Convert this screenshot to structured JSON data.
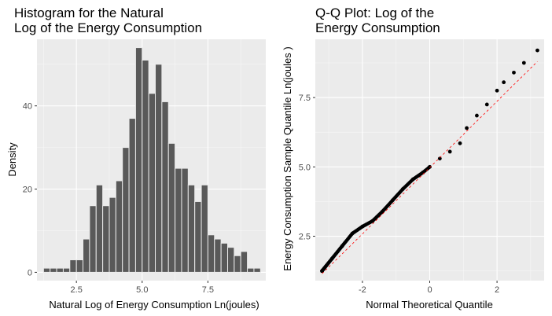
{
  "chart_data": [
    {
      "type": "bar",
      "title": "Histogram for the Natural\nLog of the Energy Consumption",
      "xlabel": "Natural Log of Energy Consumption Ln(joules)",
      "ylabel": "Density",
      "xlim": [
        1.0,
        9.7
      ],
      "ylim": [
        -2,
        56
      ],
      "xticks": [
        2.5,
        5.0,
        7.5
      ],
      "xtick_labels": [
        "2.5",
        "5.0",
        "7.5"
      ],
      "yticks": [
        0,
        20,
        40
      ],
      "ytick_labels": [
        "0",
        "20",
        "40"
      ],
      "bin_width": 0.25,
      "bin_starts": [
        1.25,
        1.5,
        1.75,
        2.0,
        2.25,
        2.5,
        2.75,
        3.0,
        3.25,
        3.5,
        3.75,
        4.0,
        4.25,
        4.5,
        4.75,
        5.0,
        5.25,
        5.5,
        5.75,
        6.0,
        6.25,
        6.5,
        6.75,
        7.0,
        7.25,
        7.5,
        7.75,
        8.0,
        8.25,
        8.5,
        8.75,
        9.0,
        9.25
      ],
      "values": [
        1,
        1,
        1,
        1,
        3,
        3,
        8,
        16,
        21,
        16,
        18,
        22,
        30,
        37,
        54,
        51,
        43,
        50,
        41,
        31,
        25,
        25,
        21,
        17,
        21,
        9,
        8,
        7,
        6,
        4,
        5,
        1,
        1
      ],
      "grid": true
    },
    {
      "type": "scatter",
      "title": "Q-Q Plot: Log of the\nEnergy Consumption",
      "xlabel": "Normal Theoretical Quantile",
      "ylabel": "Energy Consumption Sample Quantile Ln(joules )",
      "xlim": [
        -3.4,
        3.4
      ],
      "ylim": [
        0.9,
        9.6
      ],
      "xticks": [
        -2,
        0,
        2
      ],
      "xtick_labels": [
        "-2",
        "0",
        "2"
      ],
      "yticks": [
        2.5,
        5.0,
        7.5
      ],
      "ytick_labels": [
        "2.5",
        "5.0",
        "7.5"
      ],
      "reference_line": {
        "x": [
          -3.2,
          3.2
        ],
        "y": [
          1.15,
          8.8
        ],
        "color": "#ff0000",
        "style": "dashed"
      },
      "curve": {
        "x": [
          -3.2,
          -2.9,
          -2.6,
          -2.3,
          -2.0,
          -1.7,
          -1.4,
          -1.1,
          -0.8,
          -0.5,
          -0.2,
          0.0,
          0.3,
          0.6,
          0.9,
          1.1,
          1.4,
          1.7,
          2.0,
          2.2,
          2.5,
          2.8,
          3.2
        ],
        "y": [
          1.25,
          1.7,
          2.15,
          2.6,
          2.85,
          3.05,
          3.4,
          3.8,
          4.2,
          4.55,
          4.8,
          5.0,
          5.3,
          5.55,
          5.85,
          6.4,
          6.85,
          7.25,
          7.75,
          8.05,
          8.4,
          8.75,
          9.2
        ]
      },
      "point_color": "#000000",
      "grid": true
    }
  ]
}
